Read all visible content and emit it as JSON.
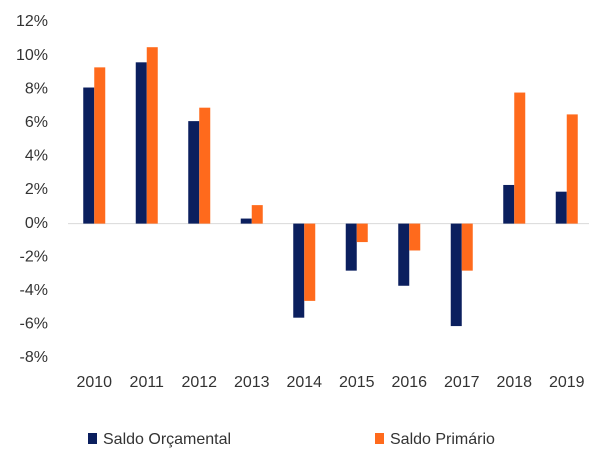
{
  "chart_data": {
    "type": "bar",
    "categories": [
      "2010",
      "2011",
      "2012",
      "2013",
      "2014",
      "2015",
      "2016",
      "2017",
      "2018",
      "2019"
    ],
    "series": [
      {
        "name": "Saldo Orçamental",
        "color": "#0b1f5e",
        "values": [
          8.1,
          9.6,
          6.1,
          0.3,
          -5.6,
          -2.8,
          -3.7,
          -6.1,
          2.3,
          1.9
        ]
      },
      {
        "name": "Saldo Primário",
        "color": "#ff6a1c",
        "values": [
          9.3,
          10.5,
          6.9,
          1.1,
          -4.6,
          -1.1,
          -1.6,
          -2.8,
          7.8,
          6.5
        ]
      }
    ],
    "ylim": [
      -8,
      12
    ],
    "yticks": [
      {
        "value": -8,
        "label": "-8%"
      },
      {
        "value": -6,
        "label": "-6%"
      },
      {
        "value": -4,
        "label": "-4%"
      },
      {
        "value": -2,
        "label": "-2%"
      },
      {
        "value": 0,
        "label": "0%"
      },
      {
        "value": 2,
        "label": "2%"
      },
      {
        "value": 4,
        "label": "4%"
      },
      {
        "value": 6,
        "label": "6%"
      },
      {
        "value": 8,
        "label": "8%"
      },
      {
        "value": 10,
        "label": "10%"
      },
      {
        "value": 12,
        "label": "12%"
      }
    ],
    "grid": false,
    "legend": "bottom"
  }
}
